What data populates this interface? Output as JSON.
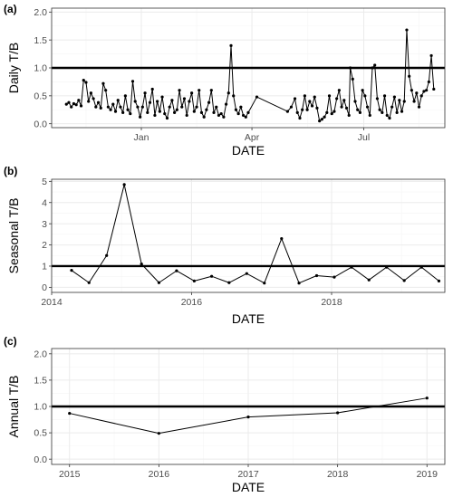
{
  "chart_data": [
    {
      "id": "a",
      "tag": "(a)",
      "type": "line",
      "xlabel": "DATE",
      "ylabel": "Daily T/B",
      "x_is_date": true,
      "xlim": [
        "2013-10-20",
        "2014-09-05"
      ],
      "ylim": [
        -0.07,
        2.07
      ],
      "yticks": [
        0.0,
        0.5,
        1.0,
        1.5,
        2.0
      ],
      "ytick_labels": [
        "0.0",
        "0.5",
        "1.0",
        "1.5",
        "2.0"
      ],
      "xticks": [
        "2014-01-01",
        "2014-04-01",
        "2014-07-01"
      ],
      "xtick_labels": [
        "Jan",
        "Apr",
        "Jul"
      ],
      "reference_line": 1.0,
      "grid": true,
      "legend": "none",
      "x": [
        "2013-11-01",
        "2013-11-03",
        "2013-11-05",
        "2013-11-07",
        "2013-11-09",
        "2013-11-11",
        "2013-11-13",
        "2013-11-15",
        "2013-11-17",
        "2013-11-19",
        "2013-11-21",
        "2013-11-23",
        "2013-11-25",
        "2013-11-27",
        "2013-11-29",
        "2013-12-01",
        "2013-12-03",
        "2013-12-05",
        "2013-12-07",
        "2013-12-09",
        "2013-12-11",
        "2013-12-13",
        "2013-12-15",
        "2013-12-17",
        "2013-12-19",
        "2013-12-21",
        "2013-12-23",
        "2013-12-25",
        "2013-12-27",
        "2013-12-29",
        "2013-12-31",
        "2014-01-02",
        "2014-01-04",
        "2014-01-06",
        "2014-01-08",
        "2014-01-10",
        "2014-01-12",
        "2014-01-14",
        "2014-01-16",
        "2014-01-18",
        "2014-01-20",
        "2014-01-22",
        "2014-01-24",
        "2014-01-26",
        "2014-01-28",
        "2014-01-30",
        "2014-02-01",
        "2014-02-03",
        "2014-02-05",
        "2014-02-07",
        "2014-02-09",
        "2014-02-11",
        "2014-02-13",
        "2014-02-15",
        "2014-02-17",
        "2014-02-19",
        "2014-02-21",
        "2014-02-23",
        "2014-02-25",
        "2014-02-27",
        "2014-03-01",
        "2014-03-03",
        "2014-03-05",
        "2014-03-07",
        "2014-03-09",
        "2014-03-11",
        "2014-03-13",
        "2014-03-15",
        "2014-03-17",
        "2014-03-19",
        "2014-03-21",
        "2014-03-23",
        "2014-03-25",
        "2014-03-27",
        "2014-03-29",
        "2014-04-05",
        "2014-04-30",
        "2014-05-03",
        "2014-05-06",
        "2014-05-08",
        "2014-05-10",
        "2014-05-12",
        "2014-05-14",
        "2014-05-16",
        "2014-05-18",
        "2014-05-20",
        "2014-05-22",
        "2014-05-24",
        "2014-05-26",
        "2014-05-28",
        "2014-05-30",
        "2014-06-01",
        "2014-06-03",
        "2014-06-05",
        "2014-06-07",
        "2014-06-09",
        "2014-06-11",
        "2014-06-13",
        "2014-06-15",
        "2014-06-17",
        "2014-06-19",
        "2014-06-20",
        "2014-06-22",
        "2014-06-24",
        "2014-06-26",
        "2014-06-28",
        "2014-06-30",
        "2014-07-02",
        "2014-07-04",
        "2014-07-06",
        "2014-07-08",
        "2014-07-10",
        "2014-07-12",
        "2014-07-14",
        "2014-07-16",
        "2014-07-18",
        "2014-07-20",
        "2014-07-22",
        "2014-07-24",
        "2014-07-26",
        "2014-07-28",
        "2014-07-30",
        "2014-08-01",
        "2014-08-03",
        "2014-08-05",
        "2014-08-07",
        "2014-08-09",
        "2014-08-11",
        "2014-08-13",
        "2014-08-15",
        "2014-08-17",
        "2014-08-19",
        "2014-08-21",
        "2014-08-23",
        "2014-08-25",
        "2014-08-27"
      ],
      "y": [
        0.35,
        0.38,
        0.3,
        0.36,
        0.34,
        0.42,
        0.32,
        0.78,
        0.74,
        0.4,
        0.55,
        0.45,
        0.3,
        0.38,
        0.28,
        0.72,
        0.6,
        0.3,
        0.25,
        0.35,
        0.22,
        0.42,
        0.3,
        0.2,
        0.5,
        0.25,
        0.18,
        0.76,
        0.4,
        0.3,
        0.12,
        0.3,
        0.55,
        0.2,
        0.38,
        0.62,
        0.15,
        0.4,
        0.22,
        0.48,
        0.18,
        0.1,
        0.3,
        0.42,
        0.2,
        0.25,
        0.6,
        0.3,
        0.45,
        0.15,
        0.4,
        0.55,
        0.22,
        0.3,
        0.6,
        0.2,
        0.12,
        0.25,
        0.38,
        0.6,
        0.2,
        0.3,
        0.15,
        0.18,
        0.12,
        0.35,
        0.55,
        1.4,
        0.5,
        0.25,
        0.18,
        0.3,
        0.15,
        0.12,
        0.2,
        0.48,
        0.22,
        0.3,
        0.45,
        0.2,
        0.1,
        0.25,
        0.5,
        0.25,
        0.4,
        0.32,
        0.48,
        0.28,
        0.05,
        0.08,
        0.12,
        0.2,
        0.5,
        0.18,
        0.22,
        0.45,
        0.6,
        0.3,
        0.42,
        0.28,
        0.15,
        1.0,
        0.8,
        0.4,
        0.25,
        0.2,
        0.6,
        0.5,
        0.3,
        0.15,
        1.0,
        1.05,
        0.45,
        0.25,
        0.2,
        0.5,
        0.15,
        0.1,
        0.3,
        0.48,
        0.2,
        0.42,
        0.22,
        0.4,
        1.68,
        0.85,
        0.6,
        0.4,
        0.55,
        0.3,
        0.5,
        0.58,
        0.6,
        0.75,
        1.22,
        0.62
      ]
    },
    {
      "id": "b",
      "tag": "(b)",
      "type": "line",
      "xlabel": "DATE",
      "ylabel": "Seasonal T/B",
      "x_is_date": true,
      "xlim": [
        "2014-01-01",
        "2019-08-15"
      ],
      "ylim": [
        -0.24,
        5.1
      ],
      "yticks": [
        0,
        1,
        2,
        3,
        4,
        5
      ],
      "ytick_labels": [
        "0",
        "1",
        "2",
        "3",
        "4",
        "5"
      ],
      "xticks": [
        "2014-01-01",
        "2016-01-01",
        "2018-01-01"
      ],
      "xtick_labels": [
        "2014",
        "2016",
        "2018"
      ],
      "reference_line": 1.0,
      "grid": true,
      "legend": "none",
      "x": [
        "2014-04-15",
        "2014-07-15",
        "2014-10-15",
        "2015-01-15",
        "2015-04-15",
        "2015-07-15",
        "2015-10-15",
        "2016-01-15",
        "2016-04-15",
        "2016-07-15",
        "2016-10-15",
        "2017-01-15",
        "2017-04-15",
        "2017-07-15",
        "2017-10-15",
        "2018-01-15",
        "2018-04-15",
        "2018-07-15",
        "2018-10-15",
        "2019-01-15",
        "2019-04-15",
        "2019-07-15"
      ],
      "y": [
        0.8,
        0.22,
        1.5,
        4.85,
        1.1,
        0.22,
        0.78,
        0.3,
        0.52,
        0.22,
        0.65,
        0.2,
        2.3,
        0.2,
        0.55,
        0.48,
        0.95,
        0.35,
        0.95,
        0.32,
        0.95,
        0.3
      ]
    },
    {
      "id": "c",
      "tag": "(c)",
      "type": "line",
      "xlabel": "DATE",
      "ylabel": "Annual T/B",
      "x_is_date": false,
      "xlim": [
        2014.8,
        2019.2
      ],
      "ylim": [
        -0.1,
        2.1
      ],
      "yticks": [
        0.0,
        0.5,
        1.0,
        1.5,
        2.0
      ],
      "ytick_labels": [
        "0.0",
        "0.5",
        "1.0",
        "1.5",
        "2.0"
      ],
      "xticks": [
        2015,
        2016,
        2017,
        2018,
        2019
      ],
      "xtick_labels": [
        "2015",
        "2016",
        "2017",
        "2018",
        "2019"
      ],
      "reference_line": 1.0,
      "grid": true,
      "legend": "none",
      "x": [
        2015,
        2016,
        2017,
        2018,
        2019
      ],
      "y": [
        0.87,
        0.49,
        0.8,
        0.88,
        1.16
      ]
    }
  ]
}
